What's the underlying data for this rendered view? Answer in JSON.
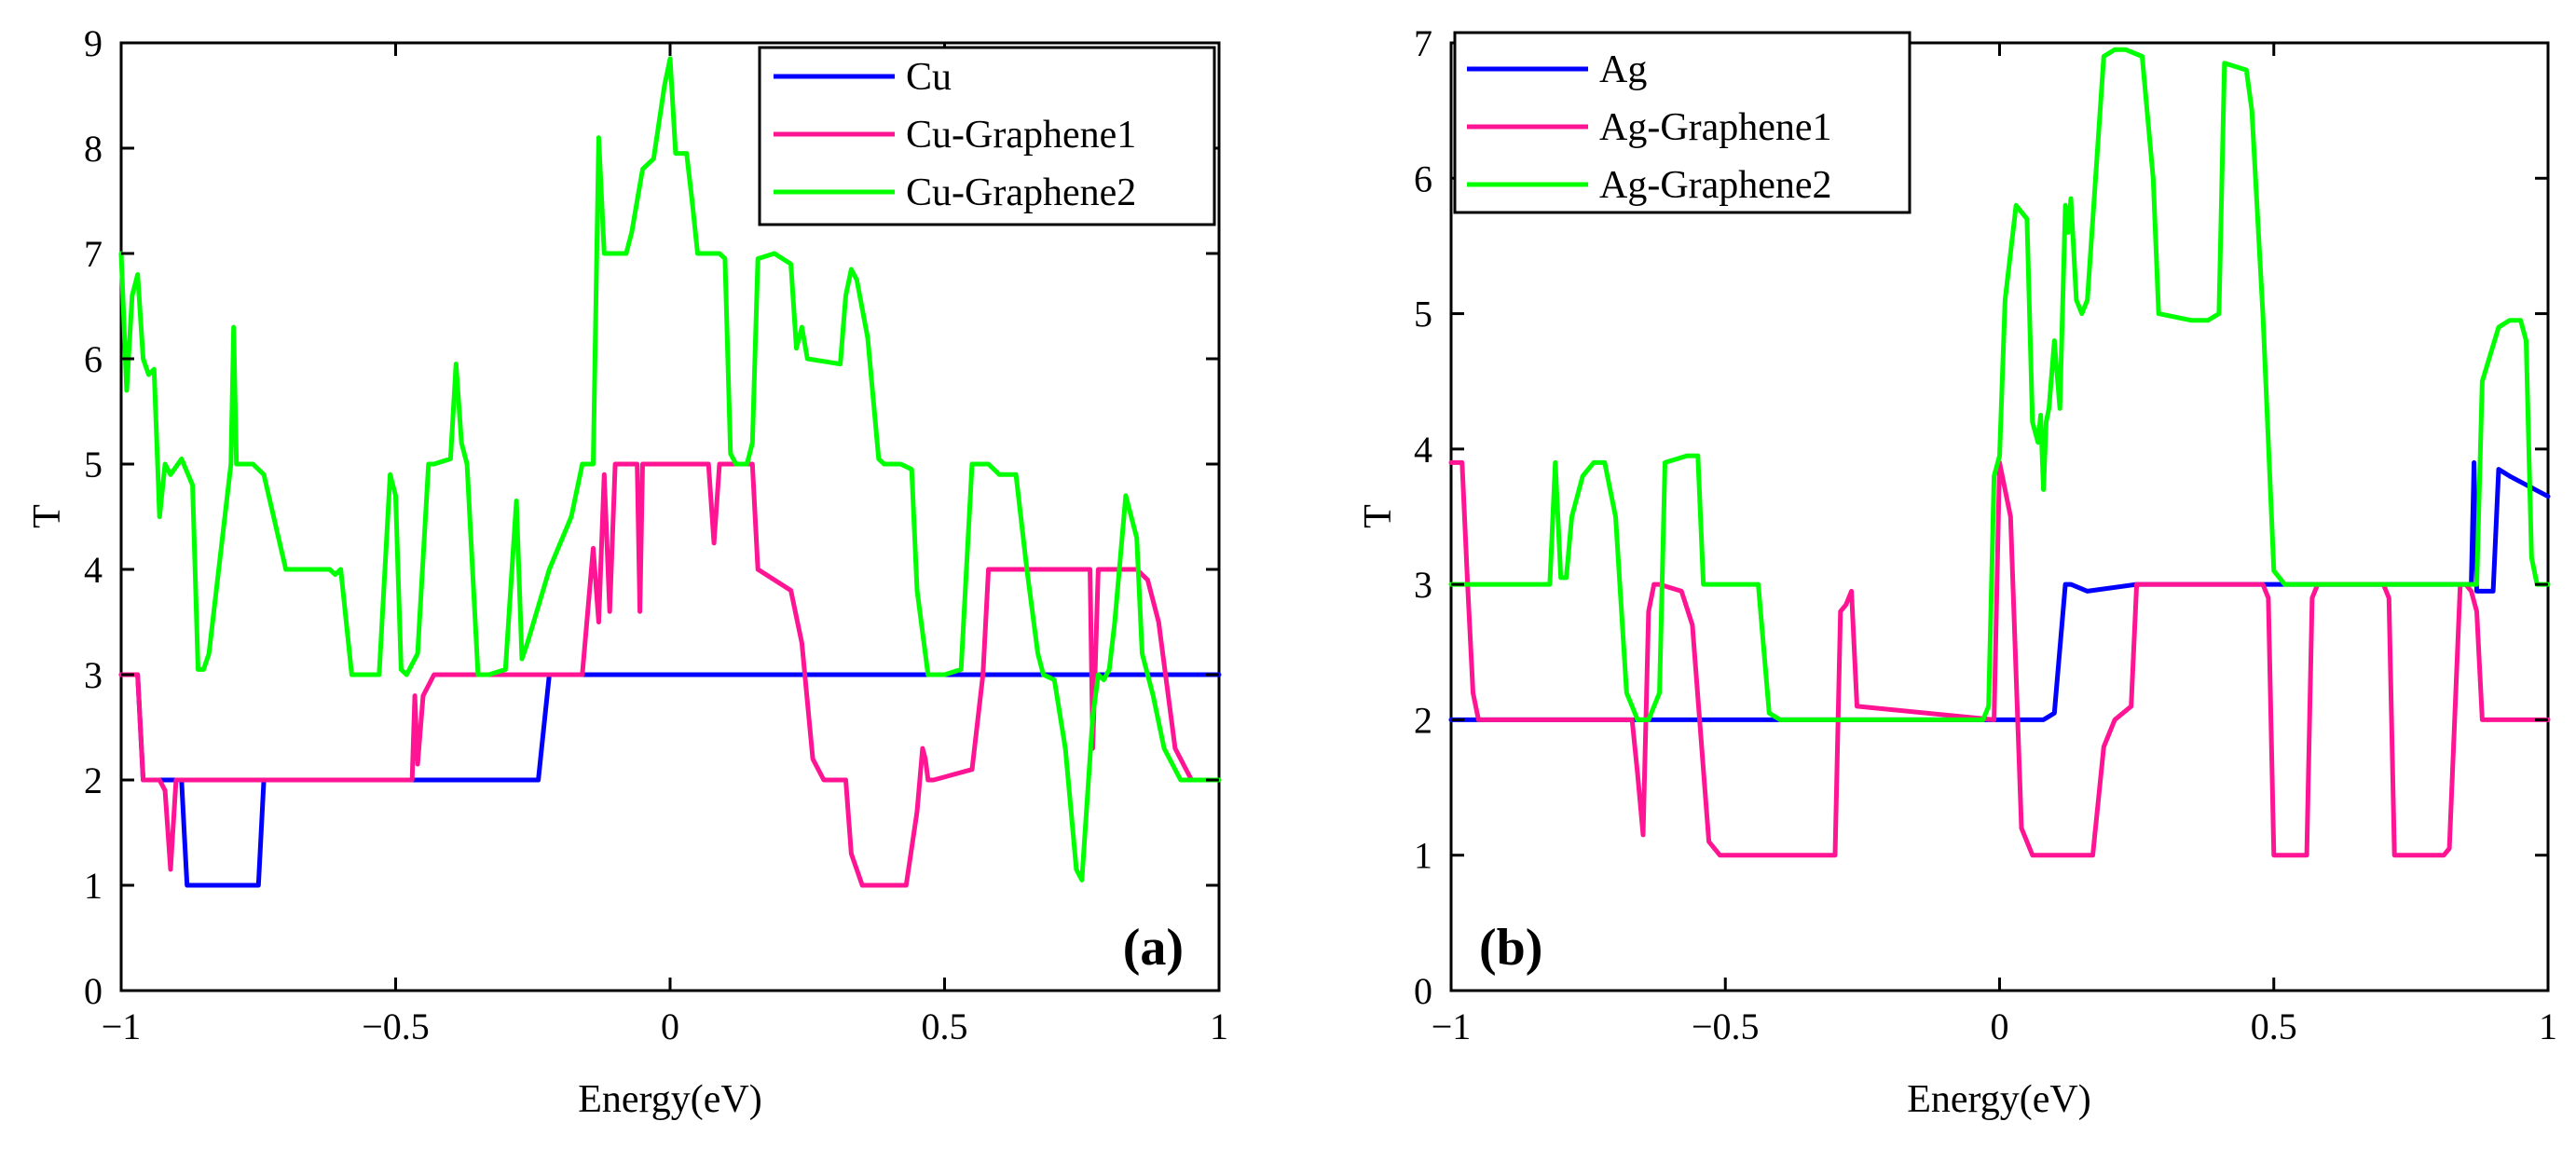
{
  "chart_data": [
    {
      "type": "line",
      "panel_label": "(a)",
      "xlabel": "Energy(eV)",
      "ylabel": "T",
      "xlim": [
        -1,
        1
      ],
      "ylim": [
        0,
        9
      ],
      "xticks": [
        -1,
        -0.5,
        0,
        0.5,
        1
      ],
      "xtick_labels": [
        "−1",
        "−0.5",
        "0",
        "0.5",
        "1"
      ],
      "yticks": [
        0,
        1,
        2,
        3,
        4,
        5,
        6,
        7,
        8,
        9
      ],
      "ytick_labels": [
        "0",
        "1",
        "2",
        "3",
        "4",
        "5",
        "6",
        "7",
        "8",
        "9"
      ],
      "legend_position": "top-right",
      "series": [
        {
          "name": "Cu",
          "color": "#0000ff",
          "x": [
            -1,
            -0.97,
            -0.96,
            -0.89,
            -0.885,
            -0.88,
            -0.75,
            -0.74,
            -0.24,
            -0.22,
            0,
            0.5,
            1
          ],
          "y": [
            3,
            3,
            2,
            2,
            1.5,
            1,
            1,
            2,
            2,
            3,
            3,
            3,
            3
          ]
        },
        {
          "name": "Cu-Graphene1",
          "color": "#ff1493",
          "x": [
            -1,
            -0.97,
            -0.96,
            -0.93,
            -0.92,
            -0.91,
            -0.9,
            -0.47,
            -0.465,
            -0.46,
            -0.45,
            -0.43,
            -0.42,
            -0.16,
            -0.14,
            -0.13,
            -0.12,
            -0.11,
            -0.1,
            -0.09,
            -0.06,
            -0.055,
            -0.05,
            0.07,
            0.08,
            0.09,
            0.15,
            0.16,
            0.22,
            0.24,
            0.26,
            0.28,
            0.32,
            0.33,
            0.35,
            0.43,
            0.45,
            0.46,
            0.465,
            0.47,
            0.48,
            0.55,
            0.57,
            0.58,
            0.76,
            0.765,
            0.77,
            0.78,
            0.85,
            0.87,
            0.89,
            0.92,
            0.95,
            1
          ],
          "y": [
            3,
            3,
            2,
            2,
            1.9,
            1.15,
            2,
            2,
            2.8,
            2.15,
            2.8,
            3,
            3,
            3,
            4.2,
            3.5,
            4.9,
            3.6,
            5,
            5,
            5,
            3.6,
            5,
            5,
            4.25,
            5,
            5,
            4,
            3.8,
            3.3,
            2.2,
            2,
            2,
            1.3,
            1,
            1,
            1.7,
            2.3,
            2.2,
            2,
            2,
            2.1,
            3,
            4,
            4,
            4,
            2.3,
            4,
            4,
            3.9,
            3.5,
            2.3,
            2,
            2
          ]
        },
        {
          "name": "Cu-Graphene2",
          "color": "#00ff00",
          "x": [
            -1,
            -0.99,
            -0.98,
            -0.97,
            -0.96,
            -0.95,
            -0.94,
            -0.93,
            -0.92,
            -0.91,
            -0.89,
            -0.87,
            -0.86,
            -0.85,
            -0.84,
            -0.8,
            -0.795,
            -0.79,
            -0.78,
            -0.76,
            -0.74,
            -0.7,
            -0.62,
            -0.61,
            -0.6,
            -0.58,
            -0.53,
            -0.51,
            -0.5,
            -0.49,
            -0.48,
            -0.46,
            -0.44,
            -0.43,
            -0.4,
            -0.39,
            -0.38,
            -0.37,
            -0.35,
            -0.34,
            -0.33,
            -0.3,
            -0.28,
            -0.27,
            -0.26,
            -0.22,
            -0.18,
            -0.16,
            -0.14,
            -0.13,
            -0.12,
            -0.09,
            -0.08,
            -0.07,
            -0.05,
            -0.03,
            -0.01,
            0,
            0.01,
            0.03,
            0.04,
            0.05,
            0.08,
            0.09,
            0.1,
            0.11,
            0.12,
            0.14,
            0.15,
            0.16,
            0.19,
            0.22,
            0.23,
            0.24,
            0.25,
            0.31,
            0.32,
            0.33,
            0.34,
            0.36,
            0.38,
            0.39,
            0.42,
            0.44,
            0.45,
            0.47,
            0.5,
            0.53,
            0.55,
            0.58,
            0.6,
            0.63,
            0.65,
            0.67,
            0.68,
            0.7,
            0.72,
            0.74,
            0.75,
            0.77,
            0.78,
            0.79,
            0.8,
            0.81,
            0.83,
            0.84,
            0.85,
            0.86,
            0.87,
            0.88,
            0.9,
            0.93,
            0.96,
            1
          ],
          "y": [
            7,
            5.7,
            6.6,
            6.8,
            6,
            5.85,
            5.9,
            4.5,
            5,
            4.9,
            5.05,
            4.8,
            3.05,
            3.05,
            3.2,
            5,
            6.3,
            5,
            5,
            5,
            4.9,
            4,
            4,
            3.95,
            4,
            3,
            3,
            4.9,
            4.7,
            3.05,
            3,
            3.2,
            5,
            5,
            5.05,
            5.95,
            5.2,
            5,
            3,
            3,
            3,
            3.05,
            4.65,
            3.15,
            3.3,
            4,
            4.5,
            5,
            5,
            8.1,
            7,
            7,
            7,
            7.2,
            7.8,
            7.9,
            8.6,
            8.85,
            7.95,
            7.95,
            7.5,
            7,
            7,
            7,
            6.95,
            5.1,
            5,
            5,
            5.2,
            6.95,
            7,
            6.9,
            6.1,
            6.3,
            6,
            5.95,
            6.6,
            6.85,
            6.75,
            6.2,
            5.05,
            5,
            5,
            4.95,
            3.8,
            3,
            3,
            3.05,
            5,
            5,
            4.9,
            4.9,
            4,
            3.2,
            3,
            2.95,
            2.3,
            1.15,
            1.05,
            2.6,
            3,
            2.95,
            3.05,
            3.5,
            4.7,
            4.5,
            4.3,
            3.2,
            3,
            2.8,
            2.3,
            2,
            2,
            2
          ]
        }
      ]
    },
    {
      "type": "line",
      "panel_label": "(b)",
      "xlabel": "Energy(eV)",
      "ylabel": "T",
      "xlim": [
        -1,
        1
      ],
      "ylim": [
        0,
        7
      ],
      "xticks": [
        -1,
        -0.5,
        0,
        0.5,
        1
      ],
      "xtick_labels": [
        "−1",
        "−0.5",
        "0",
        "0.5",
        "1"
      ],
      "yticks": [
        0,
        1,
        2,
        3,
        4,
        5,
        6,
        7
      ],
      "ytick_labels": [
        "0",
        "1",
        "2",
        "3",
        "4",
        "5",
        "6",
        "7"
      ],
      "legend_position": "top-left",
      "series": [
        {
          "name": "Ag",
          "color": "#0000ff",
          "x": [
            -1,
            0.08,
            0.1,
            0.12,
            0.13,
            0.16,
            0.25,
            0.86,
            0.865,
            0.87,
            0.9,
            0.91,
            0.93,
            1
          ],
          "y": [
            2,
            2,
            2.05,
            3,
            3,
            2.95,
            3,
            3,
            3.9,
            2.95,
            2.95,
            3.85,
            3.8,
            3.65
          ]
        },
        {
          "name": "Ag-Graphene1",
          "color": "#ff1493",
          "x": [
            -1,
            -0.98,
            -0.97,
            -0.96,
            -0.95,
            -0.67,
            -0.66,
            -0.65,
            -0.64,
            -0.63,
            -0.62,
            -0.58,
            -0.56,
            -0.53,
            -0.51,
            -0.3,
            -0.29,
            -0.28,
            -0.27,
            -0.26,
            -0.01,
            0,
            0.02,
            0.04,
            0.06,
            0.17,
            0.19,
            0.21,
            0.24,
            0.25,
            0.27,
            0.48,
            0.49,
            0.5,
            0.53,
            0.56,
            0.57,
            0.58,
            0.7,
            0.71,
            0.72,
            0.75,
            0.81,
            0.82,
            0.84,
            0.85,
            0.86,
            0.87,
            0.88,
            1
          ],
          "y": [
            3.9,
            3.9,
            3,
            2.2,
            2,
            2,
            1.6,
            1.15,
            2.8,
            3,
            3,
            2.95,
            2.7,
            1.1,
            1,
            1,
            2.8,
            2.85,
            2.95,
            2.1,
            2,
            3.9,
            3.5,
            1.2,
            1,
            1,
            1.8,
            2,
            2.1,
            3,
            3,
            3,
            2.9,
            1,
            1,
            1,
            2.9,
            3,
            3,
            2.9,
            1,
            1,
            1,
            1.05,
            3,
            3,
            2.95,
            2.8,
            2,
            2
          ]
        },
        {
          "name": "Ag-Graphene2",
          "color": "#00ff00",
          "x": [
            -1,
            -0.82,
            -0.81,
            -0.8,
            -0.79,
            -0.78,
            -0.76,
            -0.74,
            -0.72,
            -0.7,
            -0.68,
            -0.67,
            -0.66,
            -0.64,
            -0.62,
            -0.61,
            -0.57,
            -0.55,
            -0.54,
            -0.44,
            -0.42,
            -0.4,
            -0.03,
            -0.02,
            -0.01,
            0,
            0.01,
            0.03,
            0.05,
            0.06,
            0.07,
            0.075,
            0.08,
            0.085,
            0.09,
            0.1,
            0.11,
            0.12,
            0.125,
            0.13,
            0.14,
            0.15,
            0.16,
            0.19,
            0.21,
            0.23,
            0.26,
            0.28,
            0.29,
            0.35,
            0.38,
            0.4,
            0.41,
            0.45,
            0.46,
            0.48,
            0.5,
            0.52,
            0.55,
            0.57,
            0.86,
            0.87,
            0.88,
            0.91,
            0.93,
            0.95,
            0.96,
            0.97,
            0.98,
            1
          ],
          "y": [
            3,
            3,
            3.9,
            3.05,
            3.05,
            3.5,
            3.8,
            3.9,
            3.9,
            3.5,
            2.2,
            2.1,
            2,
            2,
            2.2,
            3.9,
            3.95,
            3.95,
            3,
            3,
            2.05,
            2,
            2,
            2.1,
            3.8,
            3.95,
            5.1,
            5.8,
            5.7,
            4.2,
            4.05,
            4.25,
            3.7,
            4.2,
            4.3,
            4.8,
            4.3,
            5.8,
            5.6,
            5.85,
            5.1,
            5,
            5.1,
            6.9,
            6.95,
            6.95,
            6.9,
            6,
            5,
            4.95,
            4.95,
            5,
            6.85,
            6.8,
            6.5,
            5,
            3.1,
            3,
            3,
            3,
            3,
            3,
            4.5,
            4.9,
            4.95,
            4.95,
            4.8,
            3.2,
            3,
            3
          ]
        }
      ]
    }
  ]
}
